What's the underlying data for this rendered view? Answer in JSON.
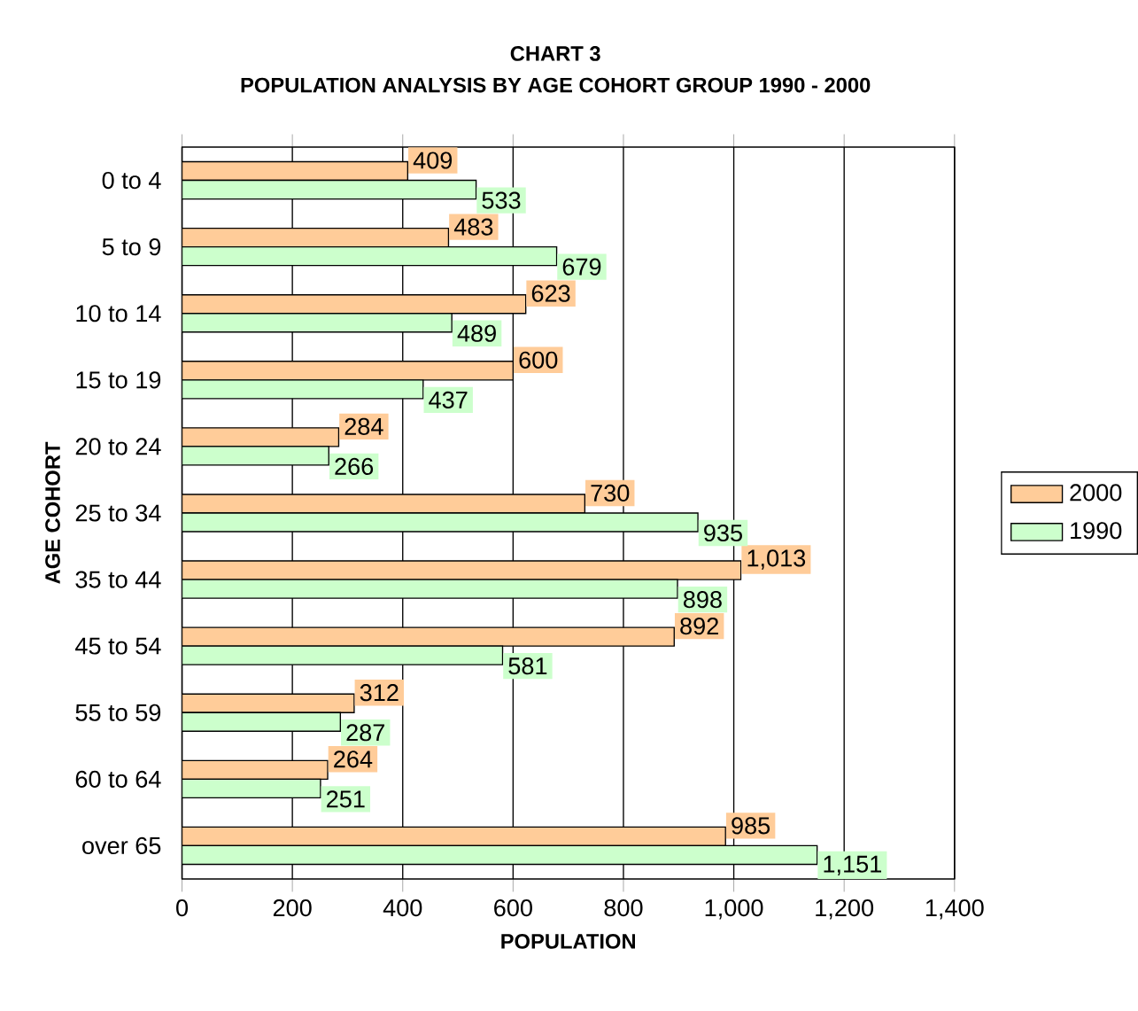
{
  "chart_data": {
    "type": "bar",
    "orientation": "horizontal",
    "title": "CHART 3",
    "subtitle": "POPULATION ANALYSIS BY AGE COHORT GROUP 1990 - 2000",
    "xlabel": "POPULATION",
    "ylabel": "AGE COHORT",
    "categories": [
      "0 to 4",
      "5 to 9",
      "10 to 14",
      "15 to 19",
      "20 to 24",
      "25 to 34",
      "35 to 44",
      "45 to 54",
      "55 to 59",
      "60 to 64",
      "over 65"
    ],
    "series": [
      {
        "name": "2000",
        "color": "#ffcc99",
        "values": [
          409,
          483,
          623,
          600,
          284,
          730,
          1013,
          892,
          312,
          264,
          985
        ],
        "value_labels": [
          "409",
          "483",
          "623",
          "600",
          "284",
          "730",
          "1,013",
          "892",
          "312",
          "264",
          "985"
        ]
      },
      {
        "name": "1990",
        "color": "#ccffcc",
        "values": [
          533,
          679,
          489,
          437,
          266,
          935,
          898,
          581,
          287,
          251,
          1151
        ],
        "value_labels": [
          "533",
          "679",
          "489",
          "437",
          "266",
          "935",
          "898",
          "581",
          "287",
          "251",
          "1,151"
        ]
      }
    ],
    "xlim": [
      0,
      1400
    ],
    "xticks": [
      0,
      200,
      400,
      600,
      800,
      {
        "value": 1000,
        "label": "1,000"
      },
      {
        "value": 1200,
        "label": "1,200"
      },
      {
        "value": 1400,
        "label": "1,400"
      }
    ],
    "grid": "x",
    "legend": "right"
  }
}
